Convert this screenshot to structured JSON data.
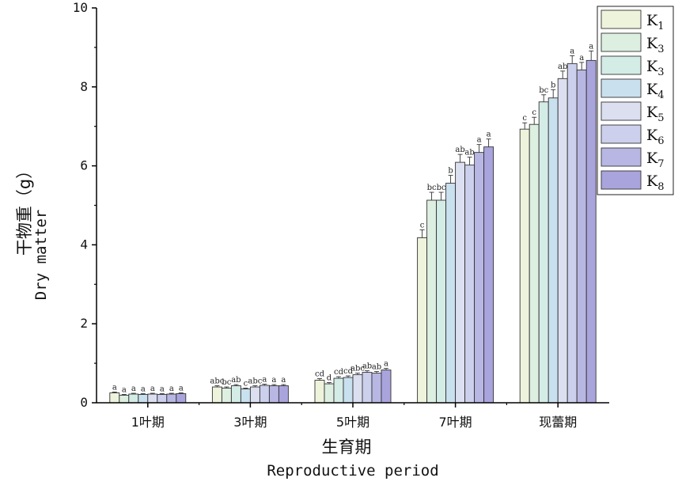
{
  "chart_data": {
    "type": "bar",
    "categories": [
      "1叶期",
      "3叶期",
      "5叶期",
      "7叶期",
      "现蕾期"
    ],
    "ylabel_cn": "干物重（g）",
    "ylabel_en": "Dry matter",
    "xlabel_cn": "生育期",
    "xlabel_en": "Reproductive period",
    "ylim": [
      0,
      10
    ],
    "yticks": [
      "0",
      "2",
      "4",
      "6",
      "8",
      "10"
    ],
    "legend_position": "top-right",
    "series": [
      {
        "name": "K",
        "sub": "1",
        "color": "#eef3dc",
        "values": [
          0.25,
          0.4,
          0.57,
          4.18,
          6.93
        ],
        "errors": [
          0.02,
          0.03,
          0.04,
          0.2,
          0.16
        ],
        "letters": [
          "a",
          "abc",
          "cd",
          "c",
          "c"
        ]
      },
      {
        "name": "K",
        "sub": "3",
        "color": "#dcefe0",
        "values": [
          0.19,
          0.37,
          0.48,
          5.13,
          7.05
        ],
        "errors": [
          0.02,
          0.03,
          0.03,
          0.2,
          0.18
        ],
        "letters": [
          "a",
          "bc",
          "d",
          "bc",
          "c"
        ]
      },
      {
        "name": "K",
        "sub": "3",
        "color": "#d4ece6",
        "values": [
          0.22,
          0.43,
          0.62,
          5.13,
          7.62
        ],
        "errors": [
          0.02,
          0.03,
          0.04,
          0.2,
          0.18
        ],
        "letters": [
          "a",
          "ab",
          "cd",
          "bc",
          "bc"
        ]
      },
      {
        "name": "K",
        "sub": "4",
        "color": "#c9e0ef",
        "values": [
          0.21,
          0.35,
          0.64,
          5.56,
          7.72
        ],
        "errors": [
          0.02,
          0.02,
          0.04,
          0.2,
          0.21
        ],
        "letters": [
          "a",
          "c",
          "cd",
          "b",
          "b"
        ]
      },
      {
        "name": "K",
        "sub": "5",
        "color": "#dcdff0",
        "values": [
          0.22,
          0.4,
          0.71,
          6.09,
          8.21
        ],
        "errors": [
          0.02,
          0.03,
          0.04,
          0.2,
          0.19
        ],
        "letters": [
          "a",
          "abc",
          "abc",
          "ab",
          "ab"
        ]
      },
      {
        "name": "K",
        "sub": "6",
        "color": "#ccd0ec",
        "values": [
          0.21,
          0.44,
          0.77,
          6.02,
          8.59
        ],
        "errors": [
          0.02,
          0.03,
          0.04,
          0.2,
          0.2
        ],
        "letters": [
          "a",
          "a",
          "ab",
          "ab",
          "a"
        ]
      },
      {
        "name": "K",
        "sub": "7",
        "color": "#b8b7e3",
        "values": [
          0.22,
          0.43,
          0.75,
          6.34,
          8.43
        ],
        "errors": [
          0.02,
          0.03,
          0.04,
          0.2,
          0.19
        ],
        "letters": [
          "a",
          "a",
          "ab",
          "a",
          "a"
        ]
      },
      {
        "name": "K",
        "sub": "8",
        "color": "#a9a4dc",
        "values": [
          0.23,
          0.43,
          0.83,
          6.48,
          8.67
        ],
        "errors": [
          0.02,
          0.03,
          0.04,
          0.2,
          0.24
        ],
        "letters": [
          "a",
          "a",
          "a",
          "a",
          "a"
        ]
      }
    ]
  }
}
